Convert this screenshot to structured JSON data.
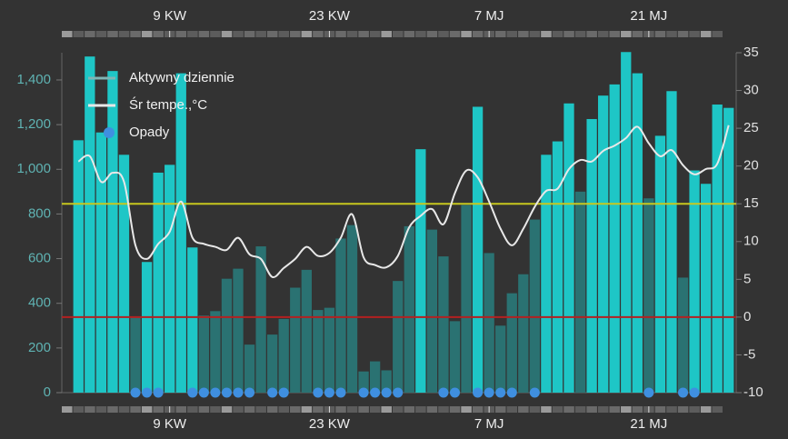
{
  "chart_data": {
    "type": "bar_line",
    "categories": [
      null,
      null,
      null,
      null,
      null,
      null,
      null,
      null,
      "9 KW",
      null,
      null,
      null,
      null,
      null,
      null,
      null,
      null,
      null,
      null,
      null,
      null,
      null,
      "23 KW",
      null,
      null,
      null,
      null,
      null,
      null,
      null,
      null,
      null,
      null,
      null,
      null,
      null,
      "7 MJ",
      null,
      null,
      null,
      null,
      null,
      null,
      null,
      null,
      null,
      null,
      null,
      null,
      null,
      "21 MJ",
      null,
      null,
      null,
      null,
      null,
      null,
      null
    ],
    "series": [
      {
        "name": "Aktywny dziennie",
        "type": "bar",
        "color": "#7fb5b5",
        "values": [
          1130,
          1505,
          1165,
          1440,
          1065,
          335,
          585,
          985,
          1020,
          1430,
          650,
          345,
          365,
          510,
          555,
          215,
          655,
          260,
          330,
          470,
          550,
          370,
          380,
          690,
          750,
          95,
          140,
          100,
          500,
          745,
          1090,
          730,
          610,
          320,
          840,
          1280,
          625,
          300,
          445,
          530,
          775,
          1065,
          1125,
          1295,
          900,
          1225,
          1330,
          1380,
          1525,
          1430,
          870,
          1150,
          1350,
          515,
          995,
          935,
          1290,
          1275
        ],
        "colors": [
          "#1ec6c6",
          "#1ec6c6",
          "#1ec6c6",
          "#1ec6c6",
          "#1ec6c6",
          "#2a7272",
          "#1ec6c6",
          "#1ec6c6",
          "#1ec6c6",
          "#1ec6c6",
          "#1ec6c6",
          "#2a7272",
          "#2a7272",
          "#2a7272",
          "#2a7272",
          "#2a7272",
          "#2a7272",
          "#2a7272",
          "#2a7272",
          "#2a7272",
          "#2a7272",
          "#2a7272",
          "#2a7272",
          "#2a7272",
          "#2a7272",
          "#2a7272",
          "#2a7272",
          "#2a7272",
          "#2a7272",
          "#2a7272",
          "#1ec6c6",
          "#2a7272",
          "#2a7272",
          "#2a7272",
          "#2a7272",
          "#1ec6c6",
          "#2a7272",
          "#2a7272",
          "#2a7272",
          "#2a7272",
          "#2a7272",
          "#1ec6c6",
          "#1ec6c6",
          "#1ec6c6",
          "#2a7272",
          "#1ec6c6",
          "#1ec6c6",
          "#1ec6c6",
          "#1ec6c6",
          "#1ec6c6",
          "#2a7272",
          "#1ec6c6",
          "#1ec6c6",
          "#2a7272",
          "#1ec6c6",
          "#1ec6c6",
          "#1ec6c6",
          "#1ec6c6"
        ]
      },
      {
        "name": "Śr tempe.,°C",
        "type": "line",
        "axis": "y2",
        "color": "#e8e8e8",
        "values": [
          20.6,
          21.3,
          17.9,
          19.1,
          17.9,
          9.5,
          7.7,
          9.7,
          11.3,
          15.3,
          10.5,
          9.7,
          9.3,
          8.9,
          10.5,
          8.3,
          7.7,
          5.3,
          6.5,
          7.7,
          9.3,
          8.1,
          8.5,
          10.5,
          13.6,
          7.9,
          6.9,
          6.6,
          8.1,
          11.9,
          13.4,
          14.3,
          12.3,
          16.4,
          19.4,
          18.5,
          15.3,
          11.7,
          9.5,
          11.7,
          14.6,
          16.7,
          17.0,
          19.6,
          20.8,
          20.6,
          22.0,
          22.7,
          23.7,
          25.2,
          23.0,
          21.3,
          22.1,
          20.1,
          18.9,
          19.6,
          20.3,
          25.4
        ]
      },
      {
        "name": "Opady",
        "type": "dots",
        "axis": "y2",
        "color": "#3f8fe0",
        "values": [
          null,
          null,
          null,
          null,
          null,
          -10,
          -10,
          -10,
          null,
          null,
          -10,
          -10,
          -10,
          -10,
          -10,
          -10,
          null,
          -10,
          -10,
          null,
          null,
          -10,
          -10,
          -10,
          null,
          -10,
          -10,
          -10,
          -10,
          null,
          null,
          null,
          -10,
          -10,
          null,
          -10,
          -10,
          -10,
          -10,
          null,
          -10,
          null,
          null,
          null,
          null,
          null,
          null,
          null,
          null,
          null,
          -10,
          null,
          null,
          -10,
          -10,
          null,
          null,
          null
        ]
      }
    ],
    "ylim": [
      0,
      1522
    ],
    "yticks": [
      0,
      200,
      400,
      600,
      800,
      {
        "value": 1000,
        "label": "1,000"
      },
      {
        "value": 1200,
        "label": "1,200"
      },
      {
        "value": 1400,
        "label": "1,400"
      }
    ],
    "y2lim": [
      -10,
      35
    ],
    "y2ticks": [
      -10,
      -5,
      0,
      5,
      10,
      15,
      20,
      25,
      30,
      35
    ],
    "reference_lines": [
      {
        "value": 15,
        "axis": "y2",
        "color": "#c8c81e"
      },
      {
        "value": 0,
        "axis": "y2",
        "color": "#b42020"
      }
    ]
  }
}
